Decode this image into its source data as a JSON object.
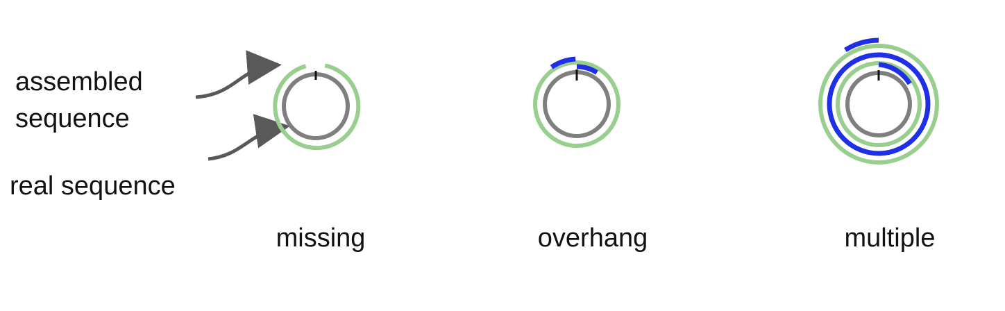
{
  "legend": {
    "assembled_line1": "assembled",
    "assembled_line2": "sequence",
    "real": "real sequence"
  },
  "panels": [
    {
      "label": "missing"
    },
    {
      "label": "overhang"
    },
    {
      "label": "multiple"
    }
  ],
  "colors": {
    "real": "#7f7f7f",
    "assembled": "#98cf8e",
    "extra": "#1f2fe6",
    "marker": "#111111",
    "arrow": "#595959",
    "text": "#111111"
  }
}
